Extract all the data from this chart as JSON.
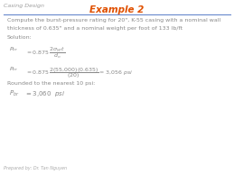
{
  "bg_color": "#ffffff",
  "header_text": "Casing Design",
  "header_color": "#9e9e9e",
  "header_fontsize": 4.5,
  "title_text": "Example 2",
  "title_color": "#e05000",
  "title_fontsize": 7.5,
  "line_color": "#6688cc",
  "body_color": "#888888",
  "body_fontsize": 4.5,
  "math_fontsize": 4.5,
  "footer_text": "Prepared by: Dr. Tan Nguyen",
  "footer_color": "#aaaaaa",
  "footer_fontsize": 3.5,
  "line1": "Compute the burst-pressure rating for 20\", K-55 casing with a nominal wall",
  "line2": "thickness of 0.635\" and a nominal weight per foot of 133 lb/ft",
  "solution": "Solution:",
  "rounded": "Rounded to the nearest 10 psi:"
}
